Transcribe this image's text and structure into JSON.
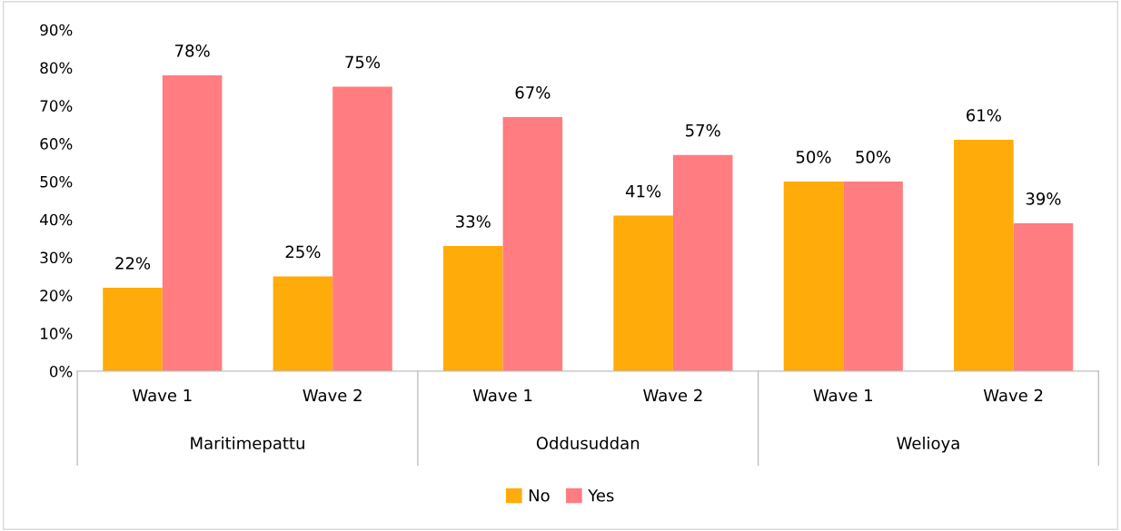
{
  "chart_data": {
    "type": "bar",
    "categories": [
      "Wave 1",
      "Wave 2",
      "Wave 1",
      "Wave 2",
      "Wave 1",
      "Wave 2"
    ],
    "series": [
      {
        "name": "No",
        "color": "#ffab0a",
        "values": [
          22,
          25,
          33,
          41,
          50,
          61
        ],
        "value_labels": [
          "22%",
          "25%",
          "33%",
          "41%",
          "50%",
          "61%"
        ]
      },
      {
        "name": "Yes",
        "color": "#ff7c80",
        "values": [
          78,
          75,
          67,
          57,
          50,
          39
        ],
        "value_labels": [
          "78%",
          "75%",
          "67%",
          "57%",
          "50%",
          "39%"
        ]
      }
    ],
    "ylim": [
      0,
      90
    ],
    "yticks": [
      {
        "value": 0,
        "label": "0%"
      },
      {
        "value": 10,
        "label": "10%"
      },
      {
        "value": 20,
        "label": "20%"
      },
      {
        "value": 30,
        "label": "30%"
      },
      {
        "value": 40,
        "label": "40%"
      },
      {
        "value": 50,
        "label": "50%"
      },
      {
        "value": 60,
        "label": "60%"
      },
      {
        "value": 70,
        "label": "70%"
      },
      {
        "value": 80,
        "label": "80%"
      },
      {
        "value": 90,
        "label": "90%"
      }
    ],
    "annotations": [
      "Maritimepattu",
      "Oddusuddan",
      "Welioya"
    ],
    "grid": false,
    "legend": "bottom"
  }
}
